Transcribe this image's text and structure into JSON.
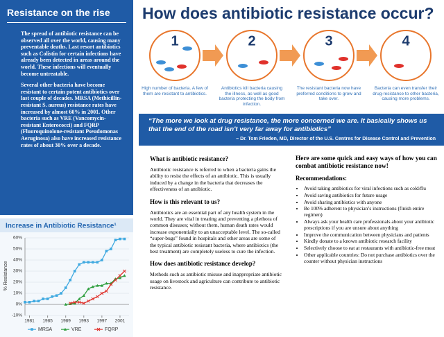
{
  "sidebar": {
    "title": "Resistance on the rise",
    "paragraphs": [
      "The spread of antibiotic resistance can be observed all over the world, causing many preventable deaths. Last resort antibiotics such as Colistin for certain infections have already been detected in areas around the world. These infections will eventually become untreatable.",
      "Several other bacteria have become resistant to certain potent antibiotics over last couple of decades. MRSA (Methicillin-resistant S. aureus) resistance rates have increased by almost 60% in 2001. Other bacteria such as VRE (Vancomycin-resistant Enterococci) and FQRP (Fluoroquinolone-resistant Pseudomonas Aeruginosa) also have increased resistance rates of about 30% over a decade."
    ]
  },
  "header": {
    "title": "How does antibiotic resistance occur?"
  },
  "steps": [
    {
      "number": "1",
      "caption": "High number of bacteria. A few of them are resistant to antibiotics."
    },
    {
      "number": "2",
      "caption": "Antibiotics kill bacteria causing the illness, as well as good bacteria protecting the body from infection."
    },
    {
      "number": "3",
      "caption": "The resistant bacteria now have preferred conditions to grow and take over."
    },
    {
      "number": "4",
      "caption": "Bacteria can even transfer their drug-resistance to other bacteria, causing more problems."
    }
  ],
  "quote": {
    "text": "“The more we look at drug resistance, the more concerned we are. It basically shows us that the end of the road isn't very far away for antibiotics”",
    "attribution": "– Dr. Tom Frieden, MD, Director of the U.S. Centres for Disease Control and Prevention"
  },
  "left_column": [
    {
      "heading": "What is antibiotic resistance?",
      "text": "Antibiotic resistance is referred to when a bacteria gains the ability to resist the effects of an antibiotic. This is usually induced by a change in the bacteria that decreases the effectiveness of an antibiotic."
    },
    {
      "heading": "How is this relevant to us?",
      "text": "Antibiotics are an essential part of any health system in the world. They are vital in treating and preventing a plethora of common diseases; without them, human death rates would increase exponentially to an unacceptable level. The so-called “super-bugs” found in hospitals and other areas are some of the typical antibiotic resistant bacteria, where antibiotics (the best treatment) are completely useless to cure the infection."
    },
    {
      "heading": "How does antibiotic resistance develop?",
      "text": "Methods such as antibiotic misuse and inappropriate antibiotic usage on livestock and agriculture can contribute to antibiotic resistance."
    }
  ],
  "right_column": {
    "heading": "Here are some quick and easy ways of how you can combat antibiotic resistance now!",
    "subheading": "Recommendations:",
    "items": [
      "Avoid taking antibiotics for viral infections such as cold/flu",
      "Avoid saving antibiotics for future usage",
      "Avoid sharing antibiotics with anyone",
      "Be 100% adherent to physician’s instructions (finish entire regimen)",
      "Always ask your health care professionals about your antibiotic prescriptions if you are unsure about anything",
      "Improve the communication between physicians and patients",
      "Kindly donate to a known antibiotic research facility",
      "Selectively choose to eat at restaurants with antibiotic-free meat",
      "Other applicable countries: Do not purchase antibiotics over the counter without physician instructions"
    ]
  },
  "chart_data": {
    "type": "line",
    "title": "Increase in Antibiotic Resistance¹",
    "x": [
      1980,
      1981,
      1982,
      1983,
      1984,
      1985,
      1986,
      1987,
      1988,
      1989,
      1990,
      1991,
      1992,
      1993,
      1994,
      1995,
      1996,
      1997,
      1998,
      1999,
      2000,
      2001,
      2002
    ],
    "series": [
      {
        "name": "MRSA",
        "color": "#3fa9e0",
        "values": [
          2,
          2,
          3,
          3,
          5,
          5,
          7,
          8,
          10,
          15,
          22,
          30,
          36,
          38,
          38,
          38,
          38,
          40,
          48,
          50,
          58,
          59,
          59
        ]
      },
      {
        "name": "VRE",
        "color": "#2e9e3e",
        "values": [
          null,
          null,
          null,
          null,
          null,
          null,
          null,
          null,
          null,
          0,
          0.5,
          1,
          5,
          8,
          14,
          16,
          17,
          17,
          19,
          19,
          23,
          24,
          26
        ]
      },
      {
        "name": "FQRP",
        "color": "#e0312b",
        "values": [
          null,
          null,
          null,
          null,
          null,
          null,
          null,
          null,
          null,
          null,
          1,
          2,
          2,
          1,
          3,
          5,
          7,
          10,
          12,
          18,
          22,
          26,
          30
        ]
      }
    ],
    "xlim": [
      1980,
      2003
    ],
    "xticks": [
      1981,
      1985,
      1989,
      1993,
      1997,
      2001
    ],
    "ylim": [
      -10,
      60
    ],
    "yticks": [
      {
        "value": -10,
        "label": "-10%"
      },
      {
        "value": 0,
        "label": "0%"
      },
      {
        "value": 10,
        "label": "10%"
      },
      {
        "value": 20,
        "label": "20%"
      },
      {
        "value": 30,
        "label": "30%"
      },
      {
        "value": 40,
        "label": "40%"
      },
      {
        "value": 50,
        "label": "50%"
      },
      {
        "value": 60,
        "label": "60%"
      }
    ],
    "ylabel": "% Resistance",
    "grid": true
  }
}
